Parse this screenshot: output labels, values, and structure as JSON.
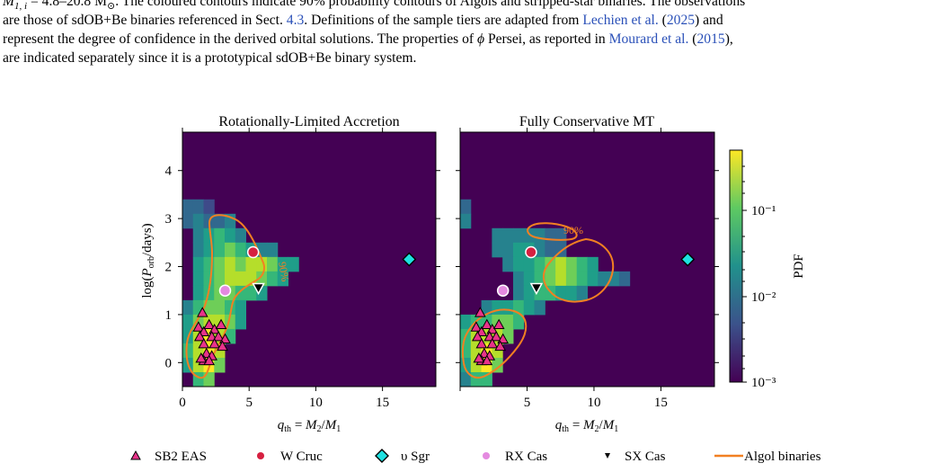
{
  "caption": {
    "line1_a": "M",
    "line1_sub": "1, i",
    "line1_b": " = 4.8–20.8 M",
    "line1_sun": "⊙",
    "line1_c": ". The coloured contours indicate 90% probability contours of Algols and stripped-star binaries. The observations",
    "line2_a": "are those of sdOB+Be binaries referenced in Sect. ",
    "line2_link1": "4.3",
    "line2_b": ". Definitions of the sample tiers are adapted from ",
    "line2_link2": "Lechien et al.",
    "line2_c": " (",
    "line2_link3": "2025",
    "line2_d": ") and",
    "line3_a": "represent the degree of confidence in the derived orbital solutions. The properties of ",
    "line3_phi": "ϕ",
    "line3_b": " Persei, as reported in ",
    "line3_link1": "Mourard et al.",
    "line3_c": " (",
    "line3_link2": "2015",
    "line3_d": "),",
    "line4": "are indicated separately since it is a prototypical sdOB+Be binary system."
  },
  "colors": {
    "link": "#2a50b8",
    "background_pdf": "#440154",
    "contour": "#f28022",
    "sb2": "#e8338a",
    "wcruc": "#d62040",
    "usgr": "#1ee0e0",
    "rxcas": "#e48ae0",
    "sxcas": "#000000"
  },
  "chart_data": [
    {
      "type": "heatmap",
      "title": "Rotationally-Limited Accretion",
      "xlabel": "q_th = M_2/M_1",
      "ylabel": "log(P_orb/days)",
      "xticks": [
        "0",
        "5",
        "10",
        "15"
      ],
      "yticks": [
        "0",
        "1",
        "2",
        "3",
        "4"
      ],
      "xlim": [
        0,
        19
      ],
      "ylim": [
        -0.5,
        4.8
      ],
      "contour_label": "90%"
    },
    {
      "type": "heatmap",
      "title": "Fully Conservative MT",
      "xlabel": "q_th = M_2/M_1",
      "ylabel": "",
      "xticks": [
        "5",
        "10",
        "15"
      ],
      "xlim": [
        0,
        19
      ],
      "ylim": [
        -0.5,
        4.8
      ],
      "contour_label": "90%"
    }
  ],
  "colorbar": {
    "label": "PDF",
    "ticks": [
      "10⁻¹",
      "10⁻²",
      "10⁻³"
    ],
    "scale": "log",
    "range": [
      0.001,
      0.5
    ]
  },
  "legend": {
    "items": [
      {
        "label": "SB2 EAS",
        "icon": "triangle-marker-icon"
      },
      {
        "label": "W Cruc",
        "icon": "red-dot-icon"
      },
      {
        "label": "υ Sgr",
        "icon": "cyan-diamond-icon"
      },
      {
        "label": "RX Cas",
        "icon": "pink-dot-icon"
      },
      {
        "label": "SX Cas",
        "icon": "black-down-triangle-icon"
      },
      {
        "label": "Algol binaries",
        "icon": "orange-line-icon"
      }
    ]
  }
}
